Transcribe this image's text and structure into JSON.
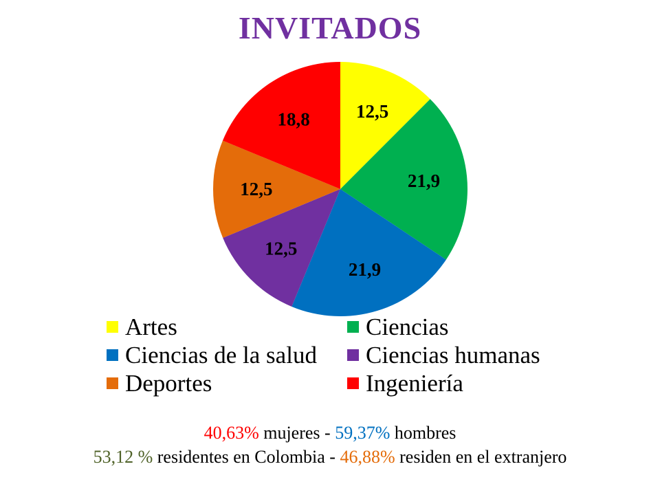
{
  "chart_data": {
    "type": "pie",
    "title": "INVITADOS",
    "slices": [
      {
        "label": "Artes",
        "value": 12.5,
        "value_label": "12,5",
        "color": "#ffff00"
      },
      {
        "label": "Ciencias",
        "value": 21.9,
        "value_label": "21,9",
        "color": "#00b050"
      },
      {
        "label": "Ciencias de la salud",
        "value": 21.9,
        "value_label": "21,9",
        "color": "#0070c0"
      },
      {
        "label": "Ciencias humanas",
        "value": 12.5,
        "value_label": "12,5",
        "color": "#7030a0"
      },
      {
        "label": "Deportes",
        "value": 12.5,
        "value_label": "12,5",
        "color": "#e46c0a"
      },
      {
        "label": "Ingeniería",
        "value": 18.8,
        "value_label": "18,8",
        "color": "#ff0000"
      }
    ],
    "legend_position": "bottom"
  },
  "legend": {
    "items": [
      {
        "label": "Artes",
        "color": "#ffff00"
      },
      {
        "label": "Ciencias",
        "color": "#00b050"
      },
      {
        "label": "Ciencias de la salud",
        "color": "#0070c0"
      },
      {
        "label": "Ciencias humanas",
        "color": "#7030a0"
      },
      {
        "label": "Deportes",
        "color": "#e46c0a"
      },
      {
        "label": "Ingeniería",
        "color": "#ff0000"
      }
    ]
  },
  "stats": {
    "line1": {
      "women_pct": "40,63%",
      "women_text": " mujeres - ",
      "men_pct": "59,37%",
      "men_text": " hombres",
      "women_color": "#ff0000",
      "men_color": "#0070c0"
    },
    "line2": {
      "colombia_pct": "53,12 %",
      "colombia_text": " residentes en Colombia - ",
      "abroad_pct": "46,88%",
      "abroad_text": " residen en el extranjero",
      "colombia_color": "#4f6228",
      "abroad_color": "#e46c0a"
    }
  }
}
